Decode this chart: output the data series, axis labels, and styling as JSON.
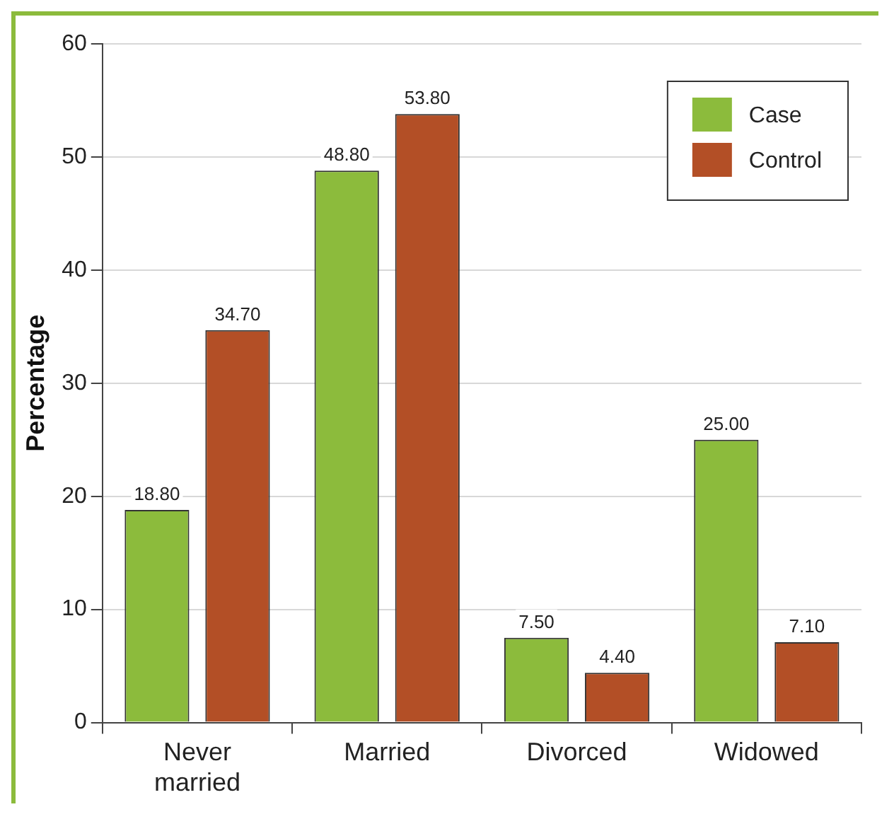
{
  "chart_data": {
    "type": "bar",
    "ylabel": "Percentage",
    "categories": [
      "Never married",
      "Married",
      "Divorced",
      "Widowed"
    ],
    "series": [
      {
        "name": "Case",
        "color": "#8cbb3c",
        "values": [
          18.8,
          48.8,
          7.5,
          25.0
        ],
        "value_labels": [
          "18.80",
          "48.80",
          "7.50",
          "25.00"
        ]
      },
      {
        "name": "Control",
        "color": "#b34f26",
        "values": [
          34.7,
          53.8,
          4.4,
          7.1
        ],
        "value_labels": [
          "34.70",
          "53.80",
          "4.40",
          "7.10"
        ]
      }
    ],
    "ylim": [
      0,
      60
    ],
    "yticks": [
      0,
      10,
      20,
      30,
      40,
      50,
      60
    ],
    "grid": "y",
    "legend": "top right"
  }
}
